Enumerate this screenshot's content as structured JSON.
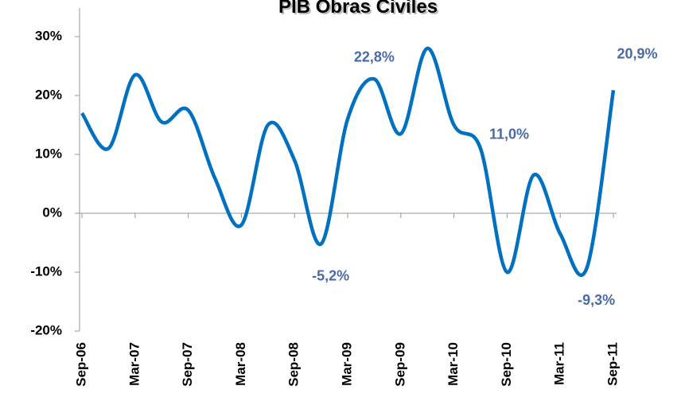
{
  "chart_data": {
    "type": "line",
    "title": "PIB Obras Civiles",
    "categories": [
      "Sep-06",
      null,
      "Mar-07",
      null,
      "Sep-07",
      null,
      "Mar-08",
      null,
      "Sep-08",
      null,
      "Mar-09",
      null,
      "Sep-09",
      null,
      "Mar-10",
      null,
      "Sep-10",
      null,
      "Mar-11",
      null,
      "Sep-11"
    ],
    "series": [
      {
        "name": "PIB Obras Civiles",
        "color": "#0070c0",
        "values": [
          17,
          11,
          23.5,
          15.5,
          17.5,
          6,
          -2,
          15,
          9,
          -5.2,
          16,
          22.8,
          13.5,
          28,
          15,
          11.0,
          -10,
          6.5,
          -3.5,
          -9.3,
          20.9
        ],
        "value_labels": [
          null,
          null,
          null,
          null,
          null,
          null,
          null,
          null,
          null,
          "-5,2%",
          null,
          "22,8%",
          null,
          null,
          null,
          "11,0%",
          null,
          null,
          null,
          "-9,3%",
          "20,9%"
        ]
      }
    ],
    "ylim": [
      -20,
      30
    ],
    "yticks": [
      {
        "value": -20,
        "label": "-20%"
      },
      {
        "value": -10,
        "label": "-10%"
      },
      {
        "value": 0,
        "label": "0%"
      },
      {
        "value": 10,
        "label": "10%"
      },
      {
        "value": 20,
        "label": "20%"
      },
      {
        "value": 30,
        "label": "30%"
      }
    ],
    "grid": false
  }
}
